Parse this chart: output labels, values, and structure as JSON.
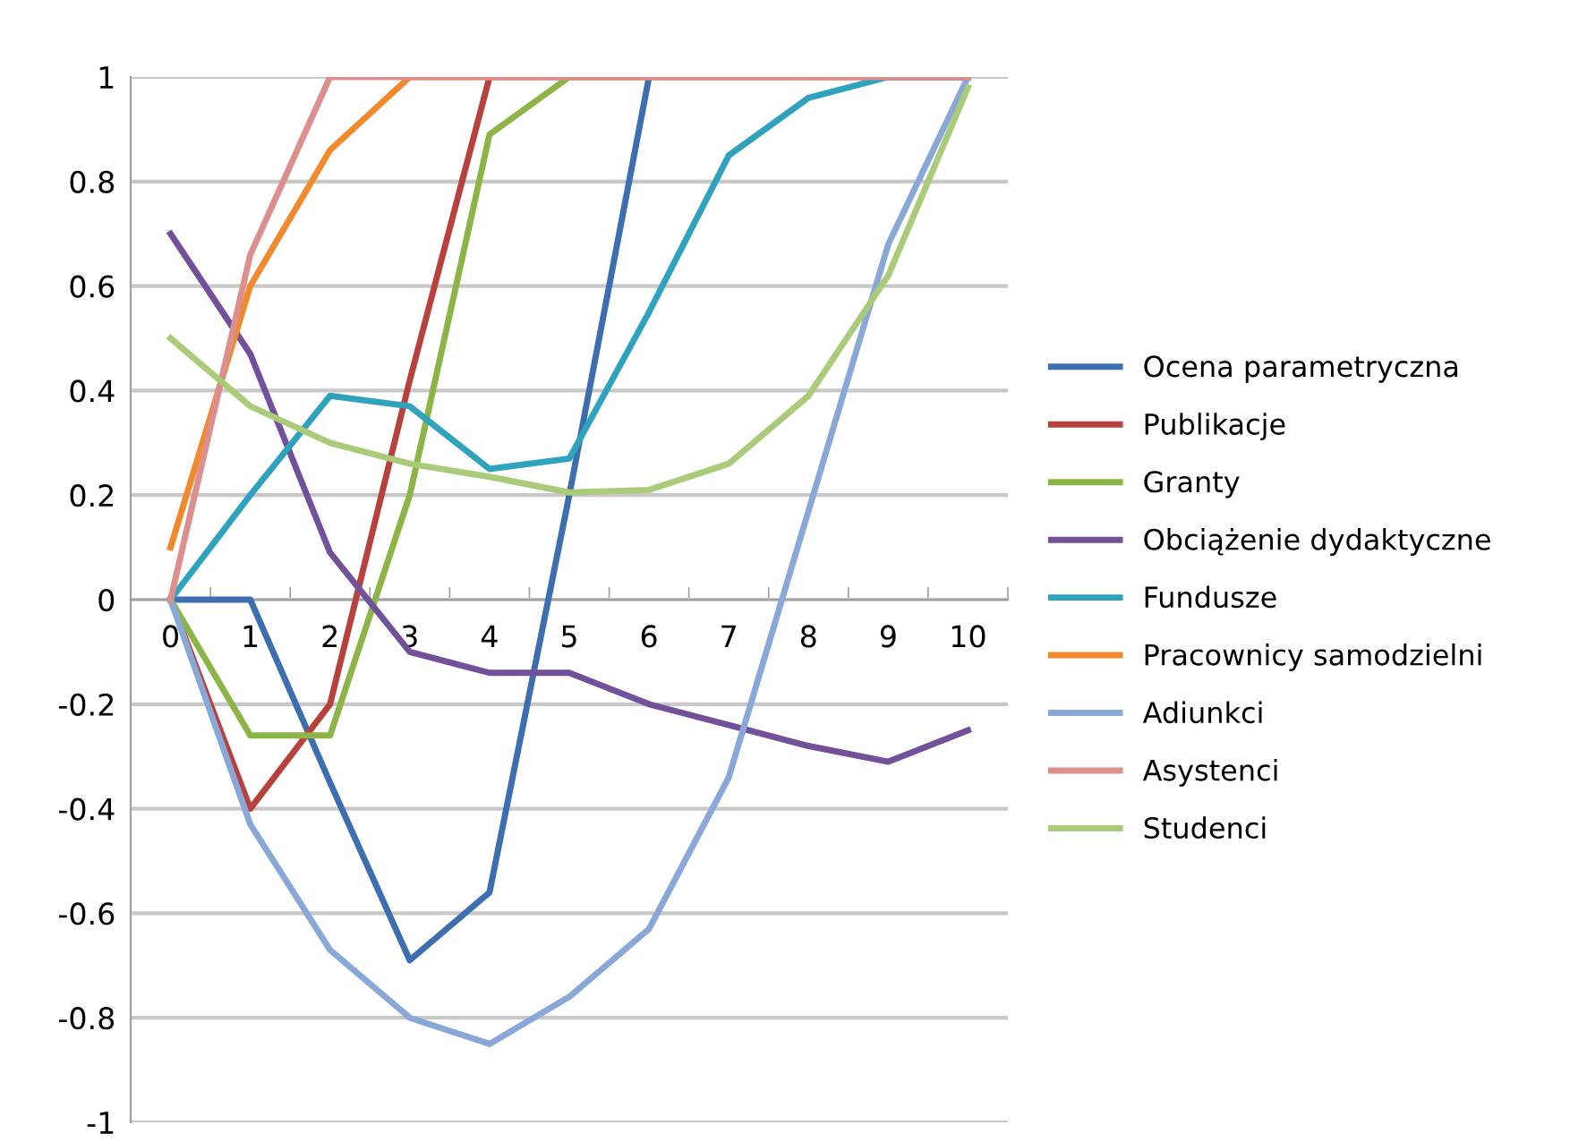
{
  "chart_data": {
    "type": "line",
    "categories": [
      "0",
      "1",
      "2",
      "3",
      "4",
      "5",
      "6",
      "7",
      "8",
      "9",
      "10"
    ],
    "series": [
      {
        "name": "Ocena parametryczna",
        "color": "#3d6fb0",
        "values": [
          0,
          0,
          -0.35,
          -0.69,
          -0.56,
          0.2,
          1,
          null,
          null,
          1,
          1
        ]
      },
      {
        "name": "Publikacje",
        "color": "#b8413e",
        "values": [
          0,
          -0.4,
          -0.2,
          0.42,
          1,
          1,
          1,
          1,
          1,
          1,
          1
        ]
      },
      {
        "name": "Granty",
        "color": "#8cb446",
        "values": [
          0,
          -0.26,
          -0.26,
          0.2,
          0.89,
          1,
          1,
          null,
          null,
          null,
          null
        ]
      },
      {
        "name": "Obciążenie dydaktyczne",
        "color": "#73519a",
        "values": [
          0.7,
          0.47,
          0.09,
          -0.1,
          -0.14,
          -0.14,
          -0.2,
          -0.24,
          -0.28,
          -0.31,
          -0.25
        ]
      },
      {
        "name": "Fundusze",
        "color": "#2fa3bd",
        "values": [
          0,
          0.2,
          0.39,
          0.37,
          0.25,
          0.27,
          0.55,
          0.85,
          0.96,
          1,
          1
        ]
      },
      {
        "name": "Pracownicy samodzielni",
        "color": "#f08a2c",
        "values": [
          0.1,
          0.6,
          0.86,
          1,
          1,
          null,
          null,
          null,
          null,
          null,
          null
        ]
      },
      {
        "name": "Adiunkci",
        "color": "#89a8d8",
        "values": [
          0,
          -0.43,
          -0.67,
          -0.8,
          -0.85,
          -0.76,
          -0.63,
          -0.34,
          0.17,
          0.68,
          1
        ]
      },
      {
        "name": "Asystenci",
        "color": "#dc8f8c",
        "values": [
          0,
          0.66,
          1,
          1,
          1,
          1,
          1,
          1,
          1,
          1,
          1
        ]
      },
      {
        "name": "Studenci",
        "color": "#aacb7a",
        "values": [
          0.5,
          0.37,
          0.3,
          0.26,
          0.235,
          0.205,
          0.21,
          0.26,
          0.39,
          0.62,
          0.98
        ]
      }
    ],
    "ylim": [
      -1,
      1
    ],
    "yticks": [
      -1,
      -0.8,
      -0.6,
      -0.4,
      -0.2,
      0,
      0.2,
      0.4,
      0.6,
      0.8,
      1
    ],
    "grid": "y",
    "legend": "right",
    "marker": "none",
    "line_style": "solid"
  }
}
